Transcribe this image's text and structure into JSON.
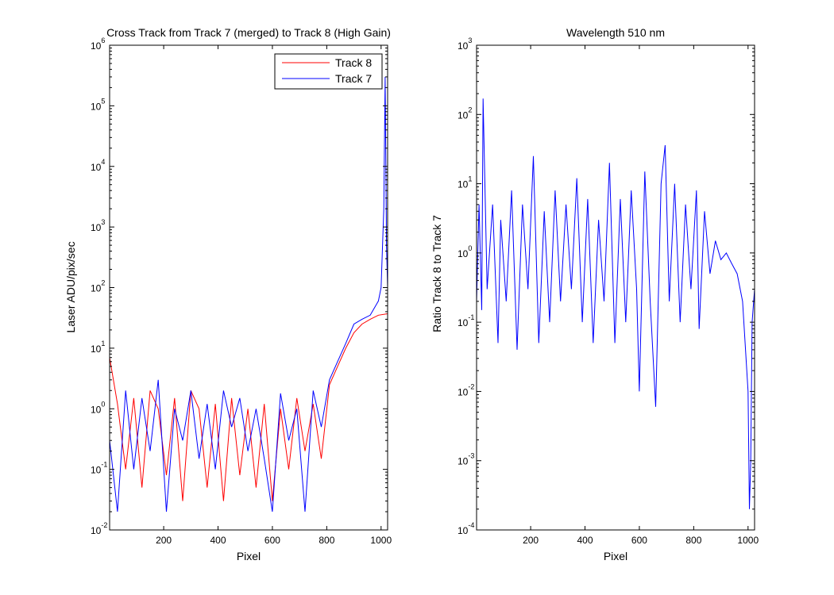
{
  "colors": {
    "track8": "#ff0000",
    "track7": "#0000ff",
    "axes": "#000000",
    "background": "#ffffff"
  },
  "chart_data": [
    {
      "type": "line",
      "title": "Cross Track from Track 7 (merged) to Track 8 (High Gain)",
      "xlabel": "Pixel",
      "ylabel": "Laser ADU/pix/sec",
      "yscale": "log",
      "xlim": [
        1,
        1024
      ],
      "ylim": [
        0.01,
        1000000
      ],
      "xticks": [
        200,
        400,
        600,
        800,
        1000
      ],
      "xtick_labels": [
        "200",
        "400",
        "600",
        "800",
        "1000"
      ],
      "yticks": [
        {
          "value": 0.01,
          "base": "10",
          "exp": "-2"
        },
        {
          "value": 0.1,
          "base": "10",
          "exp": "-1"
        },
        {
          "value": 1,
          "base": "10",
          "exp": "0"
        },
        {
          "value": 10,
          "base": "10",
          "exp": "1"
        },
        {
          "value": 100,
          "base": "10",
          "exp": "2"
        },
        {
          "value": 1000,
          "base": "10",
          "exp": "3"
        },
        {
          "value": 10000,
          "base": "10",
          "exp": "4"
        },
        {
          "value": 100000,
          "base": "10",
          "exp": "5"
        },
        {
          "value": 1000000,
          "base": "10",
          "exp": "6"
        }
      ],
      "grid": false,
      "legend": {
        "placement": "top-right",
        "entries": [
          "Track 8",
          "Track 7"
        ]
      },
      "series": [
        {
          "name": "Track 8",
          "color": "#ff0000",
          "x": [
            1,
            30,
            60,
            90,
            120,
            150,
            180,
            210,
            240,
            270,
            300,
            330,
            360,
            390,
            420,
            450,
            480,
            510,
            540,
            570,
            600,
            630,
            660,
            690,
            720,
            750,
            780,
            810,
            840,
            870,
            900,
            930,
            960,
            990,
            1024
          ],
          "y": [
            7,
            1.2,
            0.1,
            1.5,
            0.05,
            2,
            1,
            0.08,
            1.5,
            0.03,
            2,
            1,
            0.05,
            1.2,
            0.03,
            1.5,
            0.08,
            1,
            0.05,
            1.2,
            0.03,
            1,
            0.1,
            1.5,
            0.2,
            1.2,
            0.15,
            2.5,
            5,
            10,
            18,
            25,
            30,
            35,
            37
          ]
        },
        {
          "name": "Track 7",
          "color": "#0000ff",
          "x": [
            1,
            30,
            60,
            90,
            120,
            150,
            180,
            210,
            240,
            270,
            300,
            330,
            360,
            390,
            420,
            450,
            480,
            510,
            540,
            570,
            600,
            630,
            660,
            690,
            720,
            750,
            780,
            810,
            840,
            870,
            900,
            930,
            960,
            990,
            1000,
            1010,
            1015,
            1020,
            1024
          ],
          "y": [
            0.3,
            0.02,
            2,
            0.1,
            1.5,
            0.2,
            3,
            0.02,
            1,
            0.3,
            2,
            0.15,
            1.2,
            0.1,
            2,
            0.5,
            1.5,
            0.2,
            1,
            0.15,
            0.02,
            1.8,
            0.3,
            1,
            0.02,
            2,
            0.5,
            3,
            6,
            12,
            25,
            30,
            35,
            60,
            100,
            2000,
            300000,
            500,
            100
          ]
        }
      ]
    },
    {
      "type": "line",
      "title": "Wavelength 510 nm",
      "xlabel": "Pixel",
      "ylabel": "Ratio Track 8 to Track 7",
      "yscale": "log",
      "xlim": [
        1,
        1024
      ],
      "ylim": [
        0.0001,
        1000
      ],
      "xticks": [
        200,
        400,
        600,
        800,
        1000
      ],
      "xtick_labels": [
        "200",
        "400",
        "600",
        "800",
        "1000"
      ],
      "yticks": [
        {
          "value": 0.0001,
          "base": "10",
          "exp": "-4"
        },
        {
          "value": 0.001,
          "base": "10",
          "exp": "-3"
        },
        {
          "value": 0.01,
          "base": "10",
          "exp": "-2"
        },
        {
          "value": 0.1,
          "base": "10",
          "exp": "-1"
        },
        {
          "value": 1,
          "base": "10",
          "exp": "0"
        },
        {
          "value": 10,
          "base": "10",
          "exp": "1"
        },
        {
          "value": 100,
          "base": "10",
          "exp": "2"
        },
        {
          "value": 1000,
          "base": "10",
          "exp": "3"
        }
      ],
      "grid": false,
      "series": [
        {
          "color": "#0000ff",
          "x": [
            1,
            10,
            20,
            25,
            40,
            60,
            80,
            90,
            110,
            130,
            150,
            170,
            190,
            210,
            230,
            250,
            270,
            290,
            310,
            330,
            350,
            370,
            390,
            410,
            430,
            450,
            470,
            490,
            510,
            530,
            550,
            570,
            590,
            600,
            620,
            640,
            660,
            680,
            695,
            710,
            730,
            750,
            770,
            790,
            810,
            820,
            840,
            860,
            880,
            900,
            920,
            940,
            960,
            980,
            1000,
            1005,
            1010,
            1015,
            1024
          ],
          "y": [
            0.2,
            5,
            0.15,
            170,
            0.3,
            5,
            0.05,
            3,
            0.2,
            8,
            0.04,
            5,
            0.3,
            25,
            0.05,
            4,
            0.1,
            8,
            0.2,
            5,
            0.3,
            12,
            0.1,
            6,
            0.05,
            3,
            0.2,
            20,
            0.05,
            6,
            0.1,
            8,
            0.3,
            0.01,
            15,
            0.2,
            0.006,
            10,
            36,
            0.2,
            10,
            0.1,
            5,
            0.3,
            8,
            0.08,
            4,
            0.5,
            1.5,
            0.8,
            1,
            0.7,
            0.5,
            0.2,
            0.01,
            0.0002,
            0.001,
            0.1,
            0.3
          ]
        }
      ]
    }
  ]
}
